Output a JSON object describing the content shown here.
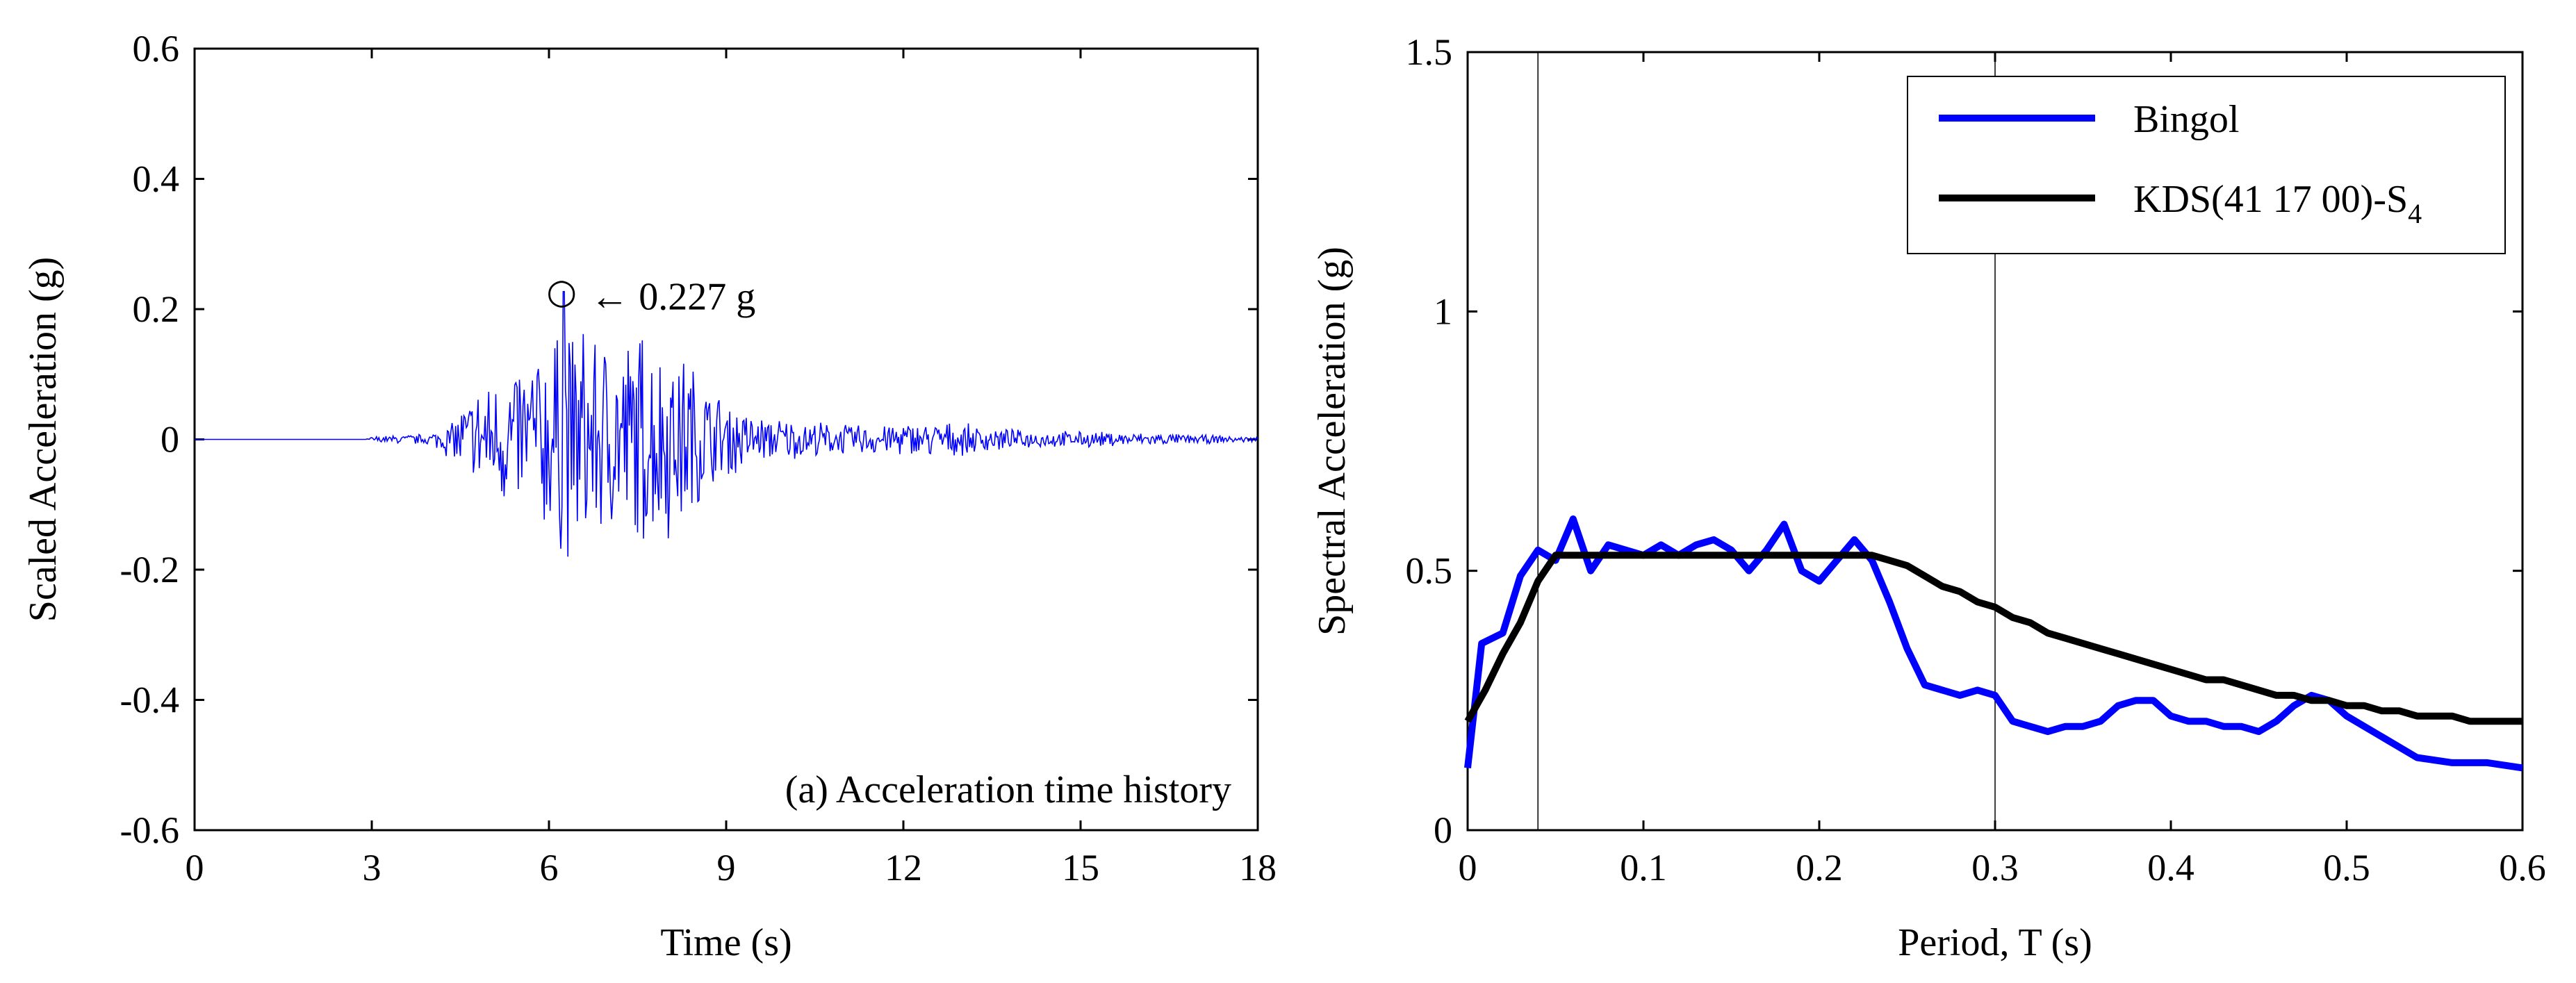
{
  "chart_data": [
    {
      "type": "line",
      "title": "",
      "annotation_panel": "(a) Acceleration time history",
      "xlabel": "Time (s)",
      "ylabel": "Scaled Acceleration (g)",
      "xlim": [
        0,
        18
      ],
      "ylim": [
        -0.6,
        0.6
      ],
      "xticks": [
        0,
        3,
        6,
        9,
        12,
        15,
        18
      ],
      "yticks": [
        -0.6,
        -0.4,
        -0.2,
        0,
        0.2,
        0.4,
        0.6
      ],
      "xtick_labels": [
        "0",
        "3",
        "6",
        "9",
        "12",
        "15",
        "18"
      ],
      "ytick_labels": [
        "-0.6",
        "-0.4",
        "-0.2",
        "0",
        "0.2",
        "0.4",
        "0.6"
      ],
      "peak": {
        "t": 6.25,
        "value": 0.227,
        "label": "← 0.227 g"
      },
      "series": [
        {
          "name": "Acceleration",
          "color": "#0000ff",
          "envelope": [
            {
              "t": 0,
              "amp": 0.0
            },
            {
              "t": 2.9,
              "amp": 0.0
            },
            {
              "t": 3.0,
              "amp": 0.005
            },
            {
              "t": 4.0,
              "amp": 0.01
            },
            {
              "t": 4.3,
              "amp": 0.03
            },
            {
              "t": 4.8,
              "amp": 0.09
            },
            {
              "t": 5.3,
              "amp": 0.12
            },
            {
              "t": 6.0,
              "amp": 0.17
            },
            {
              "t": 6.3,
              "amp": 0.2
            },
            {
              "t": 7.0,
              "amp": 0.17
            },
            {
              "t": 7.6,
              "amp": 0.19
            },
            {
              "t": 8.3,
              "amp": 0.15
            },
            {
              "t": 8.8,
              "amp": 0.08
            },
            {
              "t": 9.5,
              "amp": 0.04
            },
            {
              "t": 11.0,
              "amp": 0.025
            },
            {
              "t": 12.6,
              "amp": 0.03
            },
            {
              "t": 14.0,
              "amp": 0.015
            },
            {
              "t": 15.8,
              "amp": 0.012
            },
            {
              "t": 18.0,
              "amp": 0.004
            }
          ]
        }
      ]
    },
    {
      "type": "line",
      "title": "",
      "xlabel": "Period, T (s)",
      "ylabel": "Spectral Acceleration (g)",
      "xlim": [
        0,
        0.6
      ],
      "ylim": [
        0,
        1.5
      ],
      "xticks": [
        0,
        0.1,
        0.2,
        0.3,
        0.4,
        0.5,
        0.6
      ],
      "yticks": [
        0,
        0.5,
        1,
        1.5
      ],
      "xtick_labels": [
        "0",
        "0.1",
        "0.2",
        "0.3",
        "0.4",
        "0.5",
        "0.6"
      ],
      "ytick_labels": [
        "0",
        "0.5",
        "1",
        "1.5"
      ],
      "vertical_lines": [
        0.04,
        0.3
      ],
      "legend_position": "top-right",
      "series": [
        {
          "name": "Bingol",
          "color": "#0000ff",
          "x": [
            0,
            0.008,
            0.02,
            0.03,
            0.04,
            0.05,
            0.06,
            0.07,
            0.08,
            0.09,
            0.1,
            0.11,
            0.12,
            0.13,
            0.14,
            0.15,
            0.16,
            0.17,
            0.18,
            0.19,
            0.2,
            0.21,
            0.22,
            0.23,
            0.24,
            0.25,
            0.26,
            0.27,
            0.28,
            0.29,
            0.3,
            0.31,
            0.32,
            0.33,
            0.34,
            0.35,
            0.36,
            0.37,
            0.38,
            0.39,
            0.4,
            0.41,
            0.42,
            0.43,
            0.44,
            0.45,
            0.46,
            0.47,
            0.48,
            0.49,
            0.5,
            0.52,
            0.54,
            0.56,
            0.58,
            0.6
          ],
          "values": [
            0.12,
            0.36,
            0.38,
            0.49,
            0.54,
            0.52,
            0.6,
            0.5,
            0.55,
            0.54,
            0.53,
            0.55,
            0.53,
            0.55,
            0.56,
            0.54,
            0.5,
            0.54,
            0.59,
            0.5,
            0.48,
            0.52,
            0.56,
            0.52,
            0.44,
            0.35,
            0.28,
            0.27,
            0.26,
            0.27,
            0.26,
            0.21,
            0.2,
            0.19,
            0.2,
            0.2,
            0.21,
            0.24,
            0.25,
            0.25,
            0.22,
            0.21,
            0.21,
            0.2,
            0.2,
            0.19,
            0.21,
            0.24,
            0.26,
            0.25,
            0.22,
            0.18,
            0.14,
            0.13,
            0.13,
            0.12
          ]
        },
        {
          "name": "KDS(41 17 00)-S",
          "name_subscript": "4",
          "color": "#000000",
          "x": [
            0,
            0.01,
            0.02,
            0.03,
            0.04,
            0.05,
            0.06,
            0.08,
            0.1,
            0.12,
            0.14,
            0.16,
            0.18,
            0.2,
            0.22,
            0.23,
            0.24,
            0.25,
            0.26,
            0.27,
            0.28,
            0.29,
            0.3,
            0.31,
            0.32,
            0.33,
            0.34,
            0.35,
            0.36,
            0.37,
            0.38,
            0.39,
            0.4,
            0.41,
            0.42,
            0.43,
            0.44,
            0.45,
            0.46,
            0.47,
            0.48,
            0.49,
            0.5,
            0.51,
            0.52,
            0.53,
            0.54,
            0.55,
            0.56,
            0.57,
            0.58,
            0.59,
            0.6
          ],
          "values": [
            0.21,
            0.27,
            0.34,
            0.4,
            0.48,
            0.53,
            0.53,
            0.53,
            0.53,
            0.53,
            0.53,
            0.53,
            0.53,
            0.53,
            0.53,
            0.53,
            0.52,
            0.51,
            0.49,
            0.47,
            0.46,
            0.44,
            0.43,
            0.41,
            0.4,
            0.38,
            0.37,
            0.36,
            0.35,
            0.34,
            0.33,
            0.32,
            0.31,
            0.3,
            0.29,
            0.29,
            0.28,
            0.27,
            0.26,
            0.26,
            0.25,
            0.25,
            0.24,
            0.24,
            0.23,
            0.23,
            0.22,
            0.22,
            0.22,
            0.21,
            0.21,
            0.21,
            0.21
          ]
        }
      ]
    }
  ]
}
